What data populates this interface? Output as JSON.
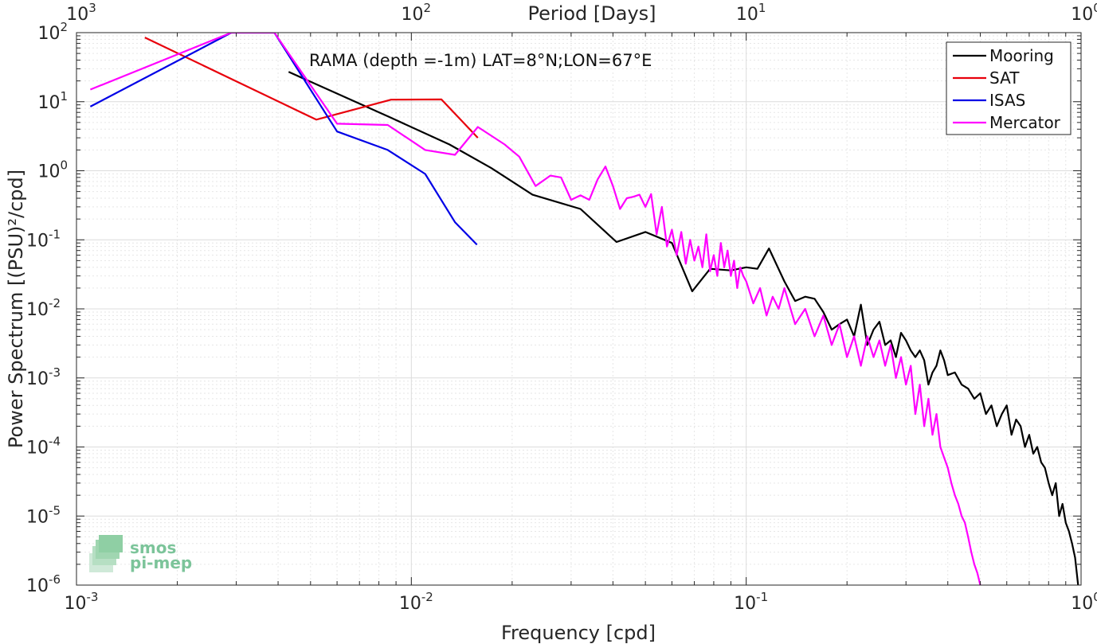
{
  "chart_data": {
    "type": "line",
    "x_scale": "log",
    "y_scale": "log",
    "xlim": [
      0.001,
      1
    ],
    "ylim": [
      1e-06,
      100
    ],
    "grid": true,
    "legend_position": "top-right",
    "xlabel": "Frequency [cpd]",
    "ylabel": "Power Spectrum [(PSU)²/cpd]",
    "top_axis_label": "Period [Days]",
    "annotation": "RAMA (depth =-1m) LAT=8°N;LON=67°E",
    "x_ticks": [
      {
        "value": 0.001,
        "base": "10",
        "exp": "-3"
      },
      {
        "value": 0.01,
        "base": "10",
        "exp": "-2"
      },
      {
        "value": 0.1,
        "base": "10",
        "exp": "-1"
      },
      {
        "value": 1,
        "base": "10",
        "exp": "0"
      }
    ],
    "top_ticks": [
      {
        "value": 0.001,
        "base": "10",
        "exp": "3"
      },
      {
        "value": 0.01,
        "base": "10",
        "exp": "2"
      },
      {
        "value": 0.1,
        "base": "10",
        "exp": "1"
      },
      {
        "value": 1,
        "base": "10",
        "exp": "0"
      }
    ],
    "y_ticks": [
      {
        "value": 100,
        "base": "10",
        "exp": "2"
      },
      {
        "value": 10,
        "base": "10",
        "exp": "1"
      },
      {
        "value": 1,
        "base": "10",
        "exp": "0"
      },
      {
        "value": 0.1,
        "base": "10",
        "exp": "-1"
      },
      {
        "value": 0.01,
        "base": "10",
        "exp": "-2"
      },
      {
        "value": 0.001,
        "base": "10",
        "exp": "-3"
      },
      {
        "value": 0.0001,
        "base": "10",
        "exp": "-4"
      },
      {
        "value": 1e-05,
        "base": "10",
        "exp": "-5"
      },
      {
        "value": 1e-06,
        "base": "10",
        "exp": "-6"
      }
    ],
    "series": [
      {
        "name": "Mooring",
        "color": "#000000",
        "x": [
          0.0043,
          0.0086,
          0.013,
          0.0173,
          0.023,
          0.032,
          0.041,
          0.05,
          0.06,
          0.069,
          0.078,
          0.09,
          0.1,
          0.108,
          0.117,
          0.13,
          0.14,
          0.15,
          0.16,
          0.17,
          0.18,
          0.19,
          0.2,
          0.21,
          0.22,
          0.23,
          0.24,
          0.25,
          0.26,
          0.27,
          0.28,
          0.29,
          0.3,
          0.31,
          0.32,
          0.33,
          0.34,
          0.35,
          0.36,
          0.37,
          0.38,
          0.39,
          0.4,
          0.42,
          0.44,
          0.46,
          0.48,
          0.5,
          0.52,
          0.54,
          0.56,
          0.58,
          0.6,
          0.62,
          0.64,
          0.66,
          0.68,
          0.7,
          0.72,
          0.74,
          0.76,
          0.78,
          0.8,
          0.82,
          0.84,
          0.86,
          0.88,
          0.9,
          0.92,
          0.94,
          0.96,
          0.98
        ],
        "y": [
          27,
          6,
          2.4,
          1.1,
          0.45,
          0.28,
          0.093,
          0.13,
          0.09,
          0.018,
          0.038,
          0.036,
          0.04,
          0.038,
          0.075,
          0.025,
          0.013,
          0.015,
          0.014,
          0.009,
          0.005,
          0.006,
          0.007,
          0.004,
          0.0115,
          0.003,
          0.005,
          0.0065,
          0.003,
          0.0035,
          0.002,
          0.0045,
          0.0035,
          0.0025,
          0.002,
          0.0025,
          0.0018,
          0.0008,
          0.0012,
          0.0015,
          0.0025,
          0.0018,
          0.0011,
          0.0012,
          0.0008,
          0.0007,
          0.0005,
          0.0006,
          0.0003,
          0.0004,
          0.0002,
          0.0003,
          0.0004,
          0.00015,
          0.00025,
          0.0002,
          0.0001,
          0.00015,
          8e-05,
          0.0001,
          6e-05,
          5e-05,
          3e-05,
          2e-05,
          3e-05,
          1e-05,
          1.5e-05,
          8e-06,
          6e-06,
          4e-06,
          2.5e-06,
          1e-06
        ]
      },
      {
        "name": "SAT",
        "color": "#e8000b",
        "x": [
          0.0016,
          0.0052,
          0.0087,
          0.0123,
          0.0158
        ],
        "y": [
          85,
          5.5,
          10.7,
          10.8,
          3.0
        ]
      },
      {
        "name": "ISAS",
        "color": "#0000e6",
        "x": [
          0.0011,
          0.0029,
          0.0039,
          0.006,
          0.0085,
          0.011,
          0.0135,
          0.0157
        ],
        "y": [
          8.5,
          100,
          100,
          3.7,
          2.0,
          0.9,
          0.18,
          0.085
        ]
      },
      {
        "name": "Mercator",
        "color": "#ff00ff",
        "x": [
          0.0011,
          0.0029,
          0.0039,
          0.006,
          0.0085,
          0.011,
          0.0135,
          0.0158,
          0.019,
          0.021,
          0.0235,
          0.026,
          0.028,
          0.03,
          0.032,
          0.034,
          0.036,
          0.038,
          0.04,
          0.042,
          0.044,
          0.046,
          0.048,
          0.05,
          0.052,
          0.054,
          0.056,
          0.058,
          0.06,
          0.062,
          0.064,
          0.066,
          0.068,
          0.07,
          0.072,
          0.074,
          0.076,
          0.078,
          0.08,
          0.082,
          0.084,
          0.086,
          0.088,
          0.09,
          0.092,
          0.094,
          0.096,
          0.098,
          0.1,
          0.105,
          0.11,
          0.115,
          0.12,
          0.125,
          0.13,
          0.14,
          0.15,
          0.16,
          0.17,
          0.18,
          0.19,
          0.2,
          0.21,
          0.22,
          0.23,
          0.24,
          0.25,
          0.26,
          0.27,
          0.28,
          0.29,
          0.3,
          0.31,
          0.32,
          0.33,
          0.34,
          0.35,
          0.36,
          0.37,
          0.38,
          0.39,
          0.4,
          0.41,
          0.42,
          0.43,
          0.44,
          0.45,
          0.46,
          0.47,
          0.48,
          0.49,
          0.5
        ],
        "y": [
          15,
          100,
          100,
          4.8,
          4.6,
          2.0,
          1.7,
          4.3,
          2.4,
          1.6,
          0.6,
          0.85,
          0.8,
          0.38,
          0.44,
          0.38,
          0.75,
          1.15,
          0.6,
          0.28,
          0.4,
          0.42,
          0.45,
          0.3,
          0.46,
          0.12,
          0.3,
          0.08,
          0.14,
          0.06,
          0.13,
          0.045,
          0.1,
          0.05,
          0.08,
          0.04,
          0.12,
          0.035,
          0.06,
          0.03,
          0.09,
          0.04,
          0.07,
          0.03,
          0.05,
          0.02,
          0.04,
          0.03,
          0.025,
          0.012,
          0.02,
          0.008,
          0.015,
          0.01,
          0.02,
          0.006,
          0.01,
          0.004,
          0.008,
          0.003,
          0.006,
          0.002,
          0.004,
          0.0015,
          0.004,
          0.002,
          0.0035,
          0.0015,
          0.003,
          0.001,
          0.002,
          0.0008,
          0.0015,
          0.0003,
          0.0008,
          0.0002,
          0.0005,
          0.00015,
          0.0003,
          0.0001,
          7e-05,
          5e-05,
          3e-05,
          2e-05,
          1.5e-05,
          1e-05,
          8e-06,
          5e-06,
          3e-06,
          2e-06,
          1.5e-06,
          1e-06
        ]
      }
    ]
  },
  "logo": {
    "line1": "smos",
    "line2": "pi-mep"
  }
}
